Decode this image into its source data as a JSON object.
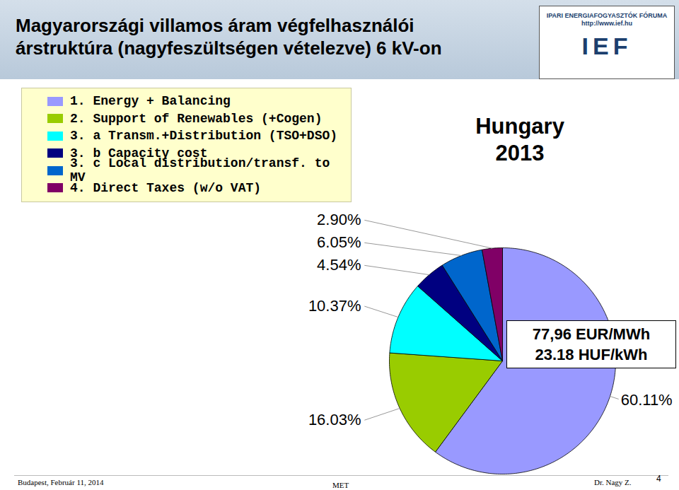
{
  "chart_data": {
    "type": "pie",
    "title": "Magyarországi villamos áram végfelhasználói árstruktúra (nagyfeszültségen vételezve) 6 kV-on",
    "categories": [
      "1. Energy + Balancing",
      "2. Support of Renewables (+Cogen)",
      "3. a Transm.+Distribution (TSO+DSO)",
      "3. b Capacity cost",
      "3. c Local distribution/transf. to MV",
      "4. Direct Taxes (w/o VAT)"
    ],
    "values": [
      60.11,
      16.03,
      10.37,
      4.54,
      6.05,
      2.9
    ],
    "value_labels": [
      "60.11%",
      "16.03%",
      "10.37%",
      "4.54%",
      "6.05%",
      "2.90%"
    ],
    "colors": [
      "#9999ff",
      "#99cc00",
      "#00ffff",
      "#000080",
      "#0066cc",
      "#800066"
    ],
    "data_labels": true,
    "legend": "top-left",
    "annotations": [
      "Hungary 2013",
      "77,96 EUR/MWh",
      "23.18 HUF/kWh"
    ]
  },
  "logo": {
    "lines": [
      "IPARI ENERGIAFOGYASZTÓK FÓRUMA",
      "http://www.ief.hu"
    ],
    "mark": "IEF"
  },
  "footer": {
    "place_date": "Budapest, Február 11, 2014",
    "center": "MET",
    "author": "Dr. Nagy Z.",
    "page": "4"
  }
}
